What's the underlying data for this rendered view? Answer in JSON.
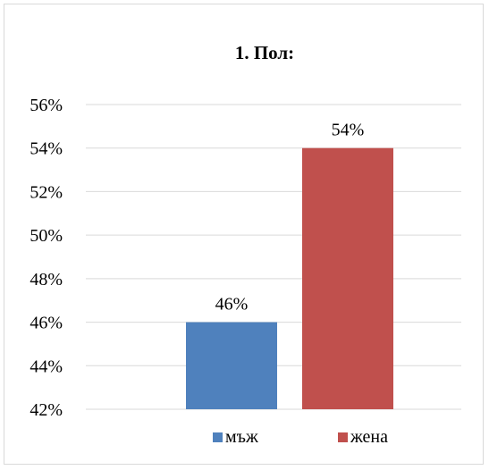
{
  "chart_data": {
    "type": "bar",
    "title": "1. Пол:",
    "categories": [
      "мъж",
      "жена"
    ],
    "values": [
      46,
      54
    ],
    "data_labels": [
      "46%",
      "54%"
    ],
    "colors": [
      "#4f81bd",
      "#c0504d"
    ],
    "ylim": [
      42,
      56
    ],
    "yticks": [
      56,
      54,
      52,
      50,
      48,
      46,
      44,
      42
    ],
    "ytick_labels": [
      "56%",
      "54%",
      "52%",
      "50%",
      "48%",
      "46%",
      "44%",
      "42%"
    ],
    "grid": true,
    "legend": "bottom",
    "xlabel": "",
    "ylabel": ""
  }
}
